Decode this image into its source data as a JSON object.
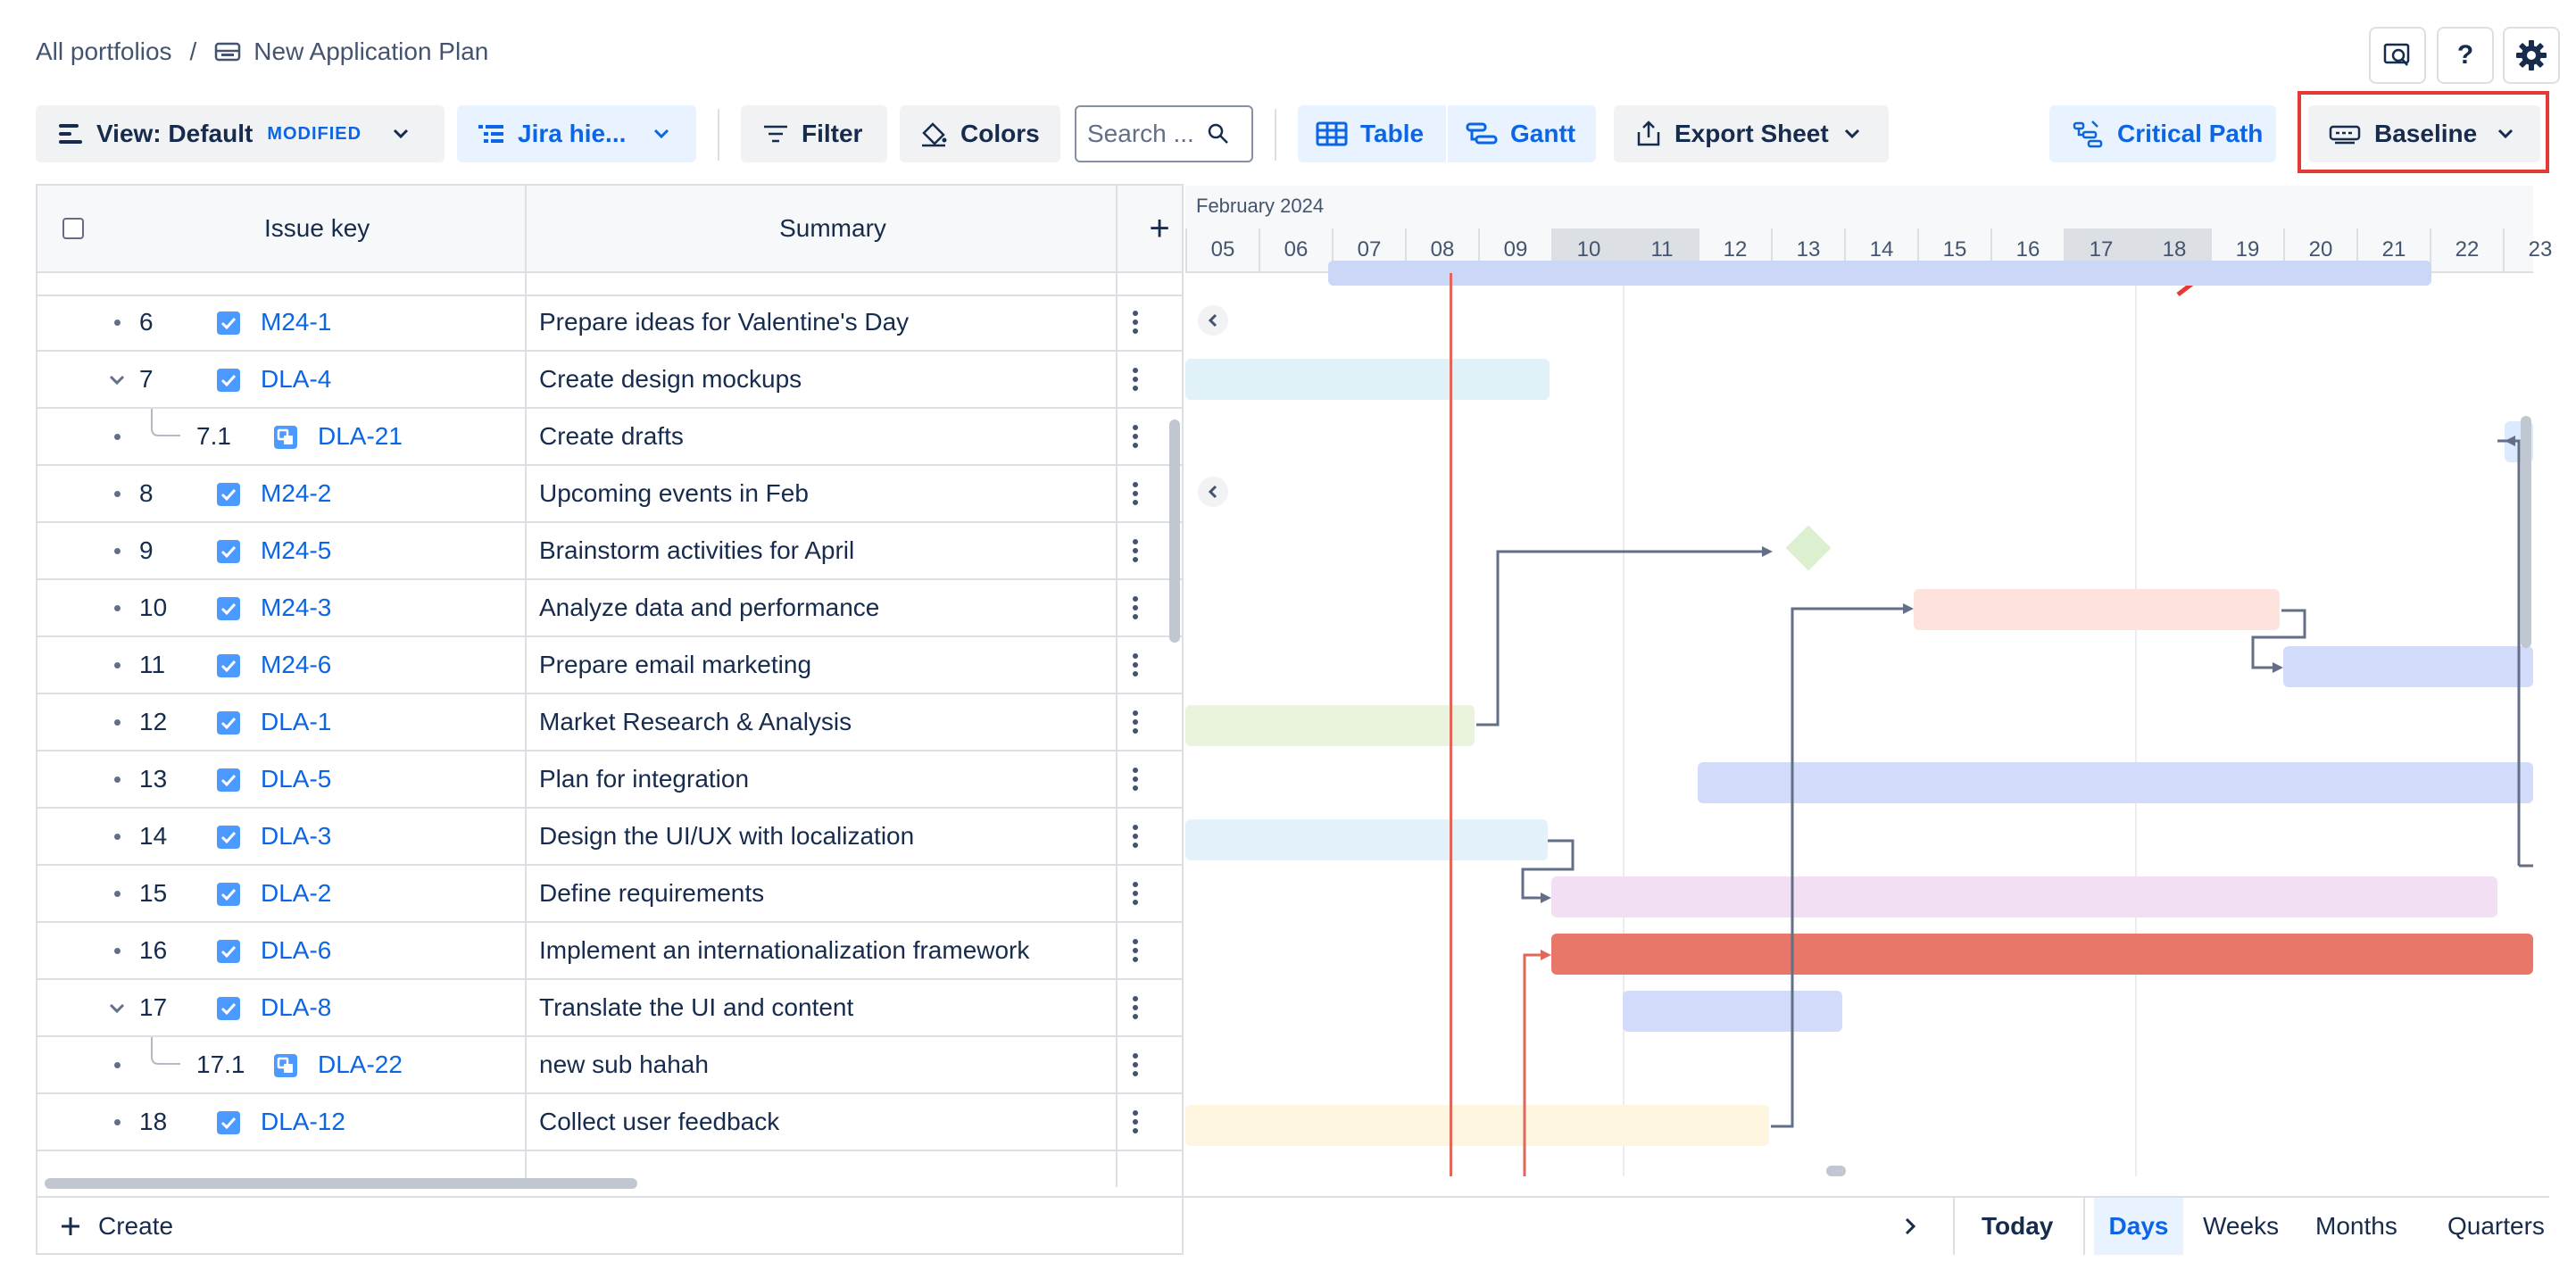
{
  "breadcrumb": {
    "root": "All portfolios",
    "sep": "/",
    "plan": "New Application Plan"
  },
  "header_icons": [
    "search-screen-icon",
    "help-icon",
    "gear-icon"
  ],
  "help_label": "?",
  "toolbar": {
    "view_label": "View: Default",
    "view_badge": "MODIFIED",
    "hierarchy_label": "Jira hie...",
    "filter_label": "Filter",
    "colors_label": "Colors",
    "search_placeholder": "Search ...",
    "table_label": "Table",
    "gantt_label": "Gantt",
    "export_label": "Export Sheet",
    "critical_label": "Critical Path",
    "baseline_label": "Baseline"
  },
  "table": {
    "col_key": "Issue key",
    "col_summary": "Summary",
    "add_col": "+",
    "rows": [
      {
        "num": "6",
        "key": "M24-1",
        "summary": "Prepare ideas for Valentine's Day",
        "type": "task",
        "expand": "bullet",
        "sub": false
      },
      {
        "num": "7",
        "key": "DLA-4",
        "summary": "Create design mockups",
        "type": "task",
        "expand": "chevron",
        "sub": false
      },
      {
        "num": "7.1",
        "key": "DLA-21",
        "summary": "Create drafts",
        "type": "subtask",
        "expand": "bullet",
        "sub": true
      },
      {
        "num": "8",
        "key": "M24-2",
        "summary": "Upcoming events in Feb",
        "type": "task",
        "expand": "bullet",
        "sub": false
      },
      {
        "num": "9",
        "key": "M24-5",
        "summary": "Brainstorm activities for April",
        "type": "task",
        "expand": "bullet",
        "sub": false
      },
      {
        "num": "10",
        "key": "M24-3",
        "summary": "Analyze data and performance",
        "type": "task",
        "expand": "bullet",
        "sub": false
      },
      {
        "num": "11",
        "key": "M24-6",
        "summary": "Prepare email marketing",
        "type": "task",
        "expand": "bullet",
        "sub": false
      },
      {
        "num": "12",
        "key": "DLA-1",
        "summary": "Market Research & Analysis",
        "type": "task",
        "expand": "bullet",
        "sub": false
      },
      {
        "num": "13",
        "key": "DLA-5",
        "summary": "Plan for integration",
        "type": "task",
        "expand": "bullet",
        "sub": false
      },
      {
        "num": "14",
        "key": "DLA-3",
        "summary": "Design the UI/UX with localization",
        "type": "task",
        "expand": "bullet",
        "sub": false
      },
      {
        "num": "15",
        "key": "DLA-2",
        "summary": "Define requirements",
        "type": "task",
        "expand": "bullet",
        "sub": false
      },
      {
        "num": "16",
        "key": "DLA-6",
        "summary": "Implement an internationalization framework",
        "type": "task",
        "expand": "bullet",
        "sub": false
      },
      {
        "num": "17",
        "key": "DLA-8",
        "summary": "Translate the UI and content",
        "type": "task",
        "expand": "chevron",
        "sub": false
      },
      {
        "num": "17.1",
        "key": "DLA-22",
        "summary": "new sub hahah",
        "type": "subtask",
        "expand": "bullet",
        "sub": true
      },
      {
        "num": "18",
        "key": "DLA-12",
        "summary": "Collect user feedback",
        "type": "task",
        "expand": "bullet",
        "sub": false
      }
    ]
  },
  "gantt": {
    "month": "February 2024",
    "days": [
      "05",
      "06",
      "07",
      "08",
      "09",
      "10",
      "11",
      "12",
      "13",
      "14",
      "15",
      "16",
      "17",
      "18",
      "19",
      "20",
      "21",
      "22",
      "23"
    ],
    "weekend_days": [
      "10",
      "11",
      "17",
      "18"
    ],
    "today": "08"
  },
  "bottom": {
    "create_label": "Create",
    "today_label": "Today",
    "days_label": "Days",
    "weeks_label": "Weeks",
    "months_label": "Months",
    "quarters_label": "Quarters"
  },
  "colors": {
    "accent": "#0c66e4",
    "today_line": "#e2665a",
    "annotation": "#e53935",
    "critical_bar": "#e8776a"
  }
}
